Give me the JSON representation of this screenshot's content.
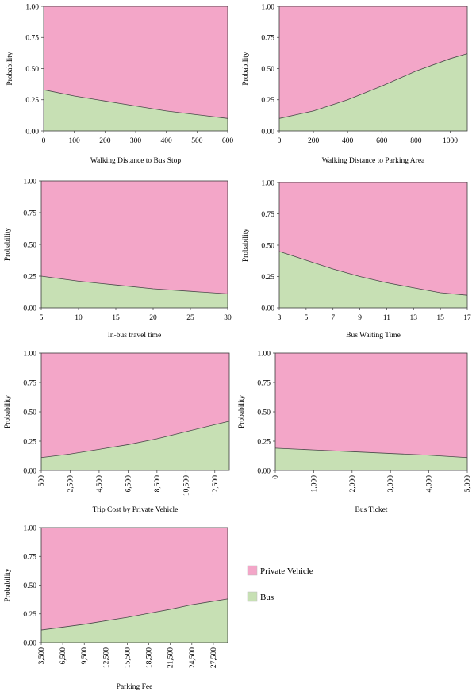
{
  "colors": {
    "private_vehicle": "#f3a6c8",
    "bus": "#c7e0b4",
    "border": "#3a3a3a"
  },
  "legend": [
    {
      "name": "Private Vehicle",
      "color": "#f3a6c8"
    },
    {
      "name": "Bus",
      "color": "#c7e0b4"
    }
  ],
  "chart_data": [
    {
      "type": "area",
      "xlabel": "Walking Distance to Bus Stop",
      "ylabel": "Probability",
      "xlim": [
        0,
        600
      ],
      "ylim": [
        0,
        1
      ],
      "xticks": [
        "0",
        "100",
        "200",
        "300",
        "400",
        "500",
        "600"
      ],
      "yticks": [
        "0.00",
        "0.25",
        "0.50",
        "0.75",
        "1.00"
      ],
      "rotate_xticks": false,
      "series": [
        {
          "name": "Bus",
          "x": [
            0,
            100,
            200,
            300,
            400,
            500,
            600
          ],
          "values": [
            0.33,
            0.28,
            0.24,
            0.2,
            0.16,
            0.13,
            0.1
          ]
        },
        {
          "name": "Private Vehicle",
          "x": [
            0,
            100,
            200,
            300,
            400,
            500,
            600
          ],
          "values": [
            0.67,
            0.72,
            0.76,
            0.8,
            0.84,
            0.87,
            0.9
          ]
        }
      ]
    },
    {
      "type": "area",
      "xlabel": "Walking Distance to Parking Area",
      "ylabel": "Probability",
      "xlim": [
        0,
        1100
      ],
      "ylim": [
        0,
        1
      ],
      "xticks": [
        "0",
        "200",
        "400",
        "600",
        "800",
        "1000"
      ],
      "xtick_values": [
        0,
        200,
        400,
        600,
        800,
        1000
      ],
      "yticks": [
        "0.00",
        "0.25",
        "0.50",
        "0.75",
        "1.00"
      ],
      "rotate_xticks": false,
      "series": [
        {
          "name": "Bus",
          "x": [
            0,
            200,
            400,
            600,
            800,
            1000,
            1100
          ],
          "values": [
            0.1,
            0.16,
            0.25,
            0.36,
            0.48,
            0.58,
            0.62
          ]
        },
        {
          "name": "Private Vehicle",
          "x": [
            0,
            200,
            400,
            600,
            800,
            1000,
            1100
          ],
          "values": [
            0.9,
            0.84,
            0.75,
            0.64,
            0.52,
            0.42,
            0.38
          ]
        }
      ]
    },
    {
      "type": "area",
      "xlabel": "In-bus travel time",
      "ylabel": "Probability",
      "xlim": [
        5,
        30
      ],
      "ylim": [
        0,
        1
      ],
      "xticks": [
        "5",
        "10",
        "15",
        "20",
        "25",
        "30"
      ],
      "yticks": [
        "0.00",
        "0.25",
        "0.50",
        "0.75",
        "1.00"
      ],
      "rotate_xticks": false,
      "series": [
        {
          "name": "Bus",
          "x": [
            5,
            10,
            15,
            20,
            25,
            30
          ],
          "values": [
            0.25,
            0.21,
            0.18,
            0.15,
            0.13,
            0.11
          ]
        },
        {
          "name": "Private Vehicle",
          "x": [
            5,
            10,
            15,
            20,
            25,
            30
          ],
          "values": [
            0.75,
            0.79,
            0.82,
            0.85,
            0.87,
            0.89
          ]
        }
      ]
    },
    {
      "type": "area",
      "xlabel": "Bus Waiting Time",
      "ylabel": "Probability",
      "xlim": [
        3,
        17
      ],
      "ylim": [
        0,
        1
      ],
      "xticks": [
        "3",
        "5",
        "7",
        "9",
        "11",
        "13",
        "15",
        "17"
      ],
      "yticks": [
        "0.00",
        "0.25",
        "0.50",
        "0.75",
        "1.00"
      ],
      "rotate_xticks": false,
      "series": [
        {
          "name": "Bus",
          "x": [
            3,
            5,
            7,
            9,
            11,
            13,
            15,
            17
          ],
          "values": [
            0.45,
            0.38,
            0.31,
            0.25,
            0.2,
            0.16,
            0.12,
            0.1
          ]
        },
        {
          "name": "Private Vehicle",
          "x": [
            3,
            5,
            7,
            9,
            11,
            13,
            15,
            17
          ],
          "values": [
            0.55,
            0.62,
            0.69,
            0.75,
            0.8,
            0.84,
            0.88,
            0.9
          ]
        }
      ]
    },
    {
      "type": "area",
      "xlabel": "Trip Cost by Private Vehicle",
      "ylabel": "Probability",
      "xlim": [
        500,
        13500
      ],
      "ylim": [
        0,
        1
      ],
      "xticks": [
        "500",
        "2,500",
        "4,500",
        "6,500",
        "8,500",
        "10,500",
        "12,500"
      ],
      "xtick_values": [
        500,
        2500,
        4500,
        6500,
        8500,
        10500,
        12500
      ],
      "yticks": [
        "0.00",
        "0.25",
        "0.50",
        "0.75",
        "1.00"
      ],
      "rotate_xticks": true,
      "series": [
        {
          "name": "Bus",
          "x": [
            500,
            2500,
            4500,
            6500,
            8500,
            10500,
            12500,
            13500
          ],
          "values": [
            0.11,
            0.14,
            0.18,
            0.22,
            0.27,
            0.33,
            0.39,
            0.42
          ]
        },
        {
          "name": "Private Vehicle",
          "x": [
            500,
            2500,
            4500,
            6500,
            8500,
            10500,
            12500,
            13500
          ],
          "values": [
            0.89,
            0.86,
            0.82,
            0.78,
            0.73,
            0.67,
            0.61,
            0.58
          ]
        }
      ]
    },
    {
      "type": "area",
      "xlabel": "Bus Ticket",
      "ylabel": "Probability",
      "xlim": [
        0,
        5000
      ],
      "ylim": [
        0,
        1
      ],
      "xticks": [
        "0",
        "1,000",
        "2,000",
        "3,000",
        "4,000",
        "5,000"
      ],
      "xtick_values": [
        0,
        1000,
        2000,
        3000,
        4000,
        5000
      ],
      "yticks": [
        "0.00",
        "0.25",
        "0.50",
        "0.75",
        "1.00"
      ],
      "rotate_xticks": true,
      "series": [
        {
          "name": "Bus",
          "x": [
            0,
            1000,
            2000,
            3000,
            4000,
            5000
          ],
          "values": [
            0.19,
            0.175,
            0.16,
            0.145,
            0.13,
            0.11
          ]
        },
        {
          "name": "Private Vehicle",
          "x": [
            0,
            1000,
            2000,
            3000,
            4000,
            5000
          ],
          "values": [
            0.81,
            0.825,
            0.84,
            0.855,
            0.87,
            0.89
          ]
        }
      ]
    },
    {
      "type": "area",
      "xlabel": "Parking Fee",
      "ylabel": "Probability",
      "xlim": [
        3500,
        29500
      ],
      "ylim": [
        0,
        1
      ],
      "xticks": [
        "3,500",
        "6,500",
        "9,500",
        "12,500",
        "15,500",
        "18,500",
        "21,500",
        "24,500",
        "27,500"
      ],
      "xtick_values": [
        3500,
        6500,
        9500,
        12500,
        15500,
        18500,
        21500,
        24500,
        27500
      ],
      "yticks": [
        "0.00",
        "0.25",
        "0.50",
        "0.75",
        "1.00"
      ],
      "rotate_xticks": true,
      "series": [
        {
          "name": "Bus",
          "x": [
            3500,
            6500,
            9500,
            12500,
            15500,
            18500,
            21500,
            24500,
            27500,
            29500
          ],
          "values": [
            0.11,
            0.135,
            0.16,
            0.19,
            0.22,
            0.255,
            0.29,
            0.33,
            0.36,
            0.38
          ]
        },
        {
          "name": "Private Vehicle",
          "x": [
            3500,
            6500,
            9500,
            12500,
            15500,
            18500,
            21500,
            24500,
            27500,
            29500
          ],
          "values": [
            0.89,
            0.865,
            0.84,
            0.81,
            0.78,
            0.745,
            0.71,
            0.67,
            0.64,
            0.62
          ]
        }
      ]
    }
  ]
}
